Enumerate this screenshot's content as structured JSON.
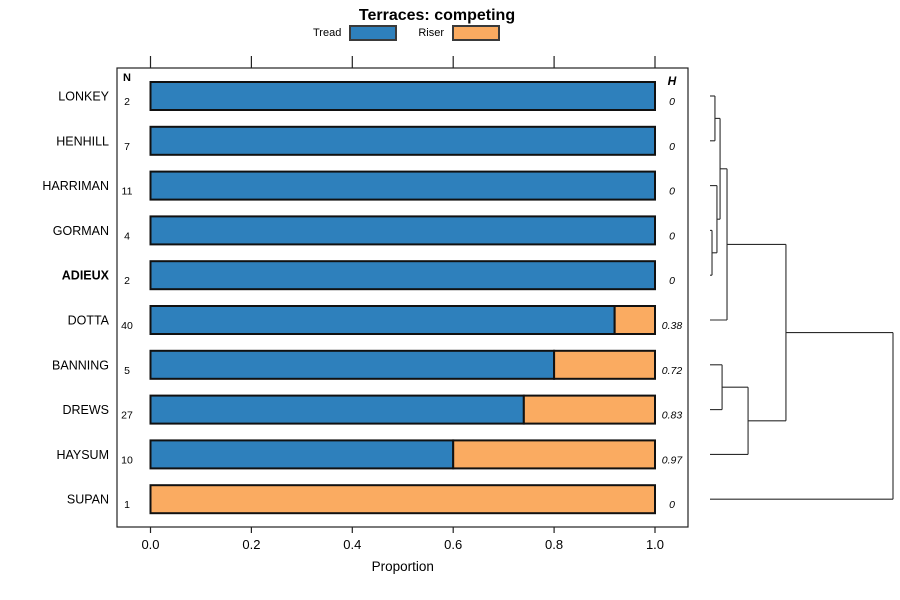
{
  "title": "Terraces: competing",
  "legend": {
    "items": [
      {
        "label": "Tread",
        "color": "#2E80BC"
      },
      {
        "label": "Riser",
        "color": "#FAAB61"
      }
    ]
  },
  "axes": {
    "xlabel": "Proportion",
    "xticks": [
      0,
      0.2,
      0.4,
      0.6,
      0.8,
      1.0
    ],
    "xtick_labels": [
      "0.0",
      "0.2",
      "0.4",
      "0.6",
      "0.8",
      "1.0"
    ],
    "xlim": [
      0,
      1
    ]
  },
  "columns": {
    "n_header": "N",
    "h_header": "H"
  },
  "chart_data": {
    "type": "bar",
    "orientation": "horizontal",
    "stacked": true,
    "title": "Terraces: competing",
    "xlabel": "Proportion",
    "xlim": [
      0,
      1
    ],
    "grid": false,
    "legend_position": "top",
    "categories": [
      "LONKEY",
      "HENHILL",
      "HARRIMAN",
      "GORMAN",
      "ADIEUX",
      "DOTTA",
      "BANNING",
      "DREWS",
      "HAYSUM",
      "SUPAN"
    ],
    "bold_categories": [
      "ADIEUX"
    ],
    "series": [
      {
        "name": "Tread",
        "color": "#2E80BC",
        "values": [
          1.0,
          1.0,
          1.0,
          1.0,
          1.0,
          0.92,
          0.8,
          0.74,
          0.6,
          0.0
        ]
      },
      {
        "name": "Riser",
        "color": "#FAAB61",
        "values": [
          0.0,
          0.0,
          0.0,
          0.0,
          0.0,
          0.08,
          0.2,
          0.26,
          0.4,
          1.0
        ]
      }
    ],
    "n_values": [
      "2",
      "7",
      "11",
      "4",
      "2",
      "40",
      "5",
      "27",
      "10",
      "1"
    ],
    "h_values": [
      "0",
      "0",
      "0",
      "0",
      "0",
      "0.38",
      "0.72",
      "0.83",
      "0.97",
      "0"
    ]
  },
  "dendrogram": {
    "leaves": [
      "LONKEY",
      "HENHILL",
      "HARRIMAN",
      "GORMAN",
      "ADIEUX",
      "DOTTA",
      "BANNING",
      "DREWS",
      "HAYSUM",
      "SUPAN"
    ],
    "merges": [
      {
        "a": "L3",
        "b": "L4",
        "h": 0.011
      },
      {
        "a": "L0",
        "b": "L1",
        "h": 0.027
      },
      {
        "a": "L2",
        "b": "M0",
        "h": 0.038
      },
      {
        "a": "M1",
        "b": "M2",
        "h": 0.055
      },
      {
        "a": "L6",
        "b": "L7",
        "h": 0.066
      },
      {
        "a": "M3",
        "b": "L5",
        "h": 0.093
      },
      {
        "a": "M4",
        "b": "L8",
        "h": 0.208
      },
      {
        "a": "M5",
        "b": "M6",
        "h": 0.415
      },
      {
        "a": "M7",
        "b": "L9",
        "h": 1.0
      }
    ]
  }
}
